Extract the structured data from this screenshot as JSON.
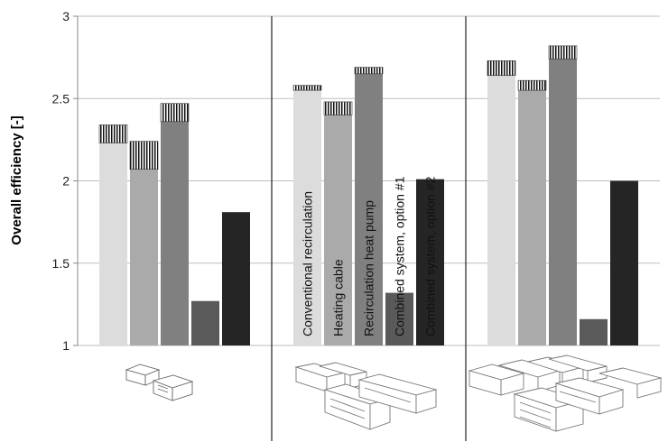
{
  "chart_data": {
    "type": "bar",
    "title": "",
    "xlabel": "",
    "ylabel": "Overall efficiency [-]",
    "ylim": [
      1,
      3
    ],
    "yticks": [
      1,
      1.5,
      2,
      2.5,
      3
    ],
    "ytick_labels": [
      "1",
      "1.5",
      "2",
      "2.5",
      "3"
    ],
    "grid": true,
    "legend": "none",
    "stacked": true,
    "groups": [
      "",
      "",
      ""
    ],
    "categories": [
      "Conventional recirculation",
      "Heating cable",
      "Recirculation heat pump",
      "Combined system, option #1",
      "Combined system, option #2"
    ],
    "series": [
      {
        "key": "base",
        "values": [
          [
            2.23,
            2.07,
            2.36,
            1.27,
            1.81
          ],
          [
            2.55,
            2.4,
            2.65,
            1.32,
            2.01
          ],
          [
            2.64,
            2.55,
            2.74,
            1.16,
            2.0
          ]
        ]
      },
      {
        "key": "hatched",
        "values": [
          [
            0.11,
            0.17,
            0.11,
            0.0,
            0.0
          ],
          [
            0.03,
            0.08,
            0.04,
            0.0,
            0.0
          ],
          [
            0.09,
            0.06,
            0.08,
            0.0,
            0.0
          ]
        ]
      }
    ],
    "colors": {
      "bars": [
        "#dcdcdc",
        "#aaaaaa",
        "#808080",
        "#5a5a5a",
        "#252525"
      ],
      "grid": "#bdbdbd",
      "divider": "#222222",
      "hatch": "#111111",
      "label_on_light": "#111111",
      "label_on_dark": "#ffffff"
    },
    "pictograms": [
      "two-small-buildings-icon",
      "four-row-buildings-icon",
      "many-large-buildings-icon"
    ]
  }
}
